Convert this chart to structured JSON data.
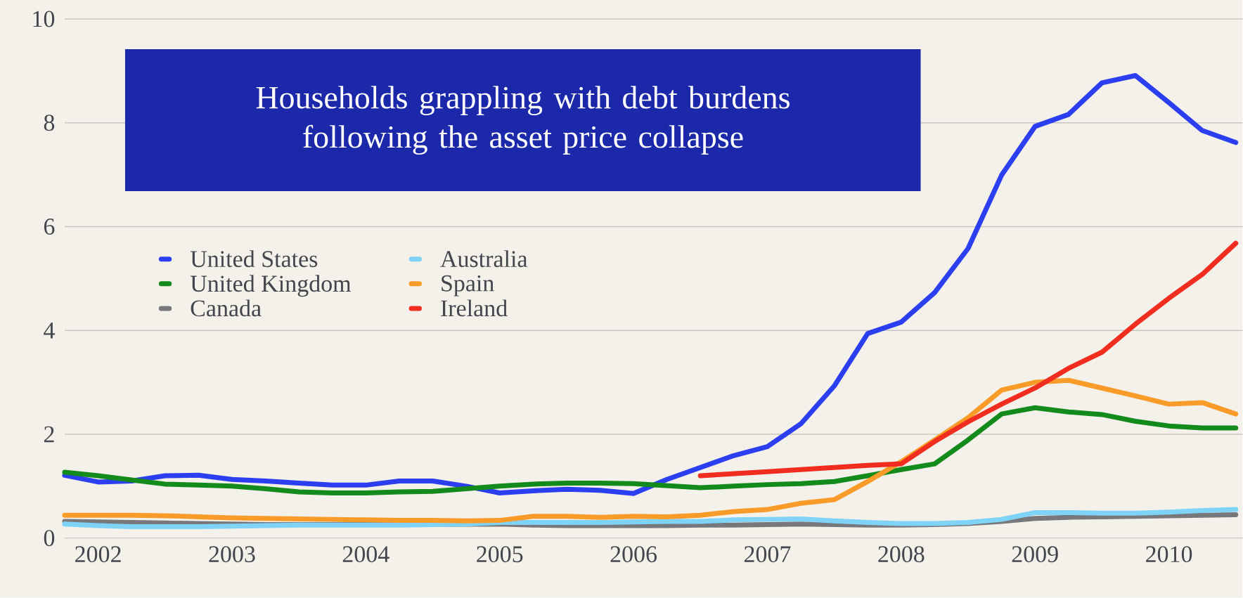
{
  "chart_data": {
    "type": "line",
    "title": "Households grappling with debt burdens following the asset price collapse",
    "x": [
      2001.75,
      2002,
      2002.25,
      2002.5,
      2002.75,
      2003,
      2003.25,
      2003.5,
      2003.75,
      2004,
      2004.25,
      2004.5,
      2004.75,
      2005,
      2005.25,
      2005.5,
      2005.75,
      2006,
      2006.25,
      2006.5,
      2006.75,
      2007,
      2007.25,
      2007.5,
      2007.75,
      2008,
      2008.25,
      2008.5,
      2008.75,
      2009,
      2009.25,
      2009.5,
      2009.75,
      2010,
      2010.25,
      2010.5
    ],
    "series": [
      {
        "name": "United States",
        "color": "#2b3ff0",
        "values": [
          1.21,
          1.08,
          1.1,
          1.2,
          1.21,
          1.13,
          1.1,
          1.06,
          1.02,
          1.02,
          1.1,
          1.1,
          1.0,
          0.87,
          0.91,
          0.94,
          0.92,
          0.86,
          1.13,
          1.36,
          1.59,
          1.76,
          2.2,
          2.93,
          3.94,
          4.16,
          4.73,
          5.58,
          6.99,
          7.93,
          8.16,
          8.77,
          8.91,
          8.39,
          7.85,
          7.62
        ]
      },
      {
        "name": "United Kingdom",
        "color": "#138a1c",
        "values": [
          1.27,
          1.2,
          1.12,
          1.04,
          1.02,
          1.0,
          0.95,
          0.89,
          0.87,
          0.87,
          0.89,
          0.9,
          0.95,
          1.0,
          1.04,
          1.06,
          1.06,
          1.05,
          1.01,
          0.97,
          1.0,
          1.03,
          1.05,
          1.09,
          1.2,
          1.32,
          1.43,
          1.89,
          2.39,
          2.51,
          2.43,
          2.38,
          2.25,
          2.16,
          2.12,
          2.12
        ]
      },
      {
        "name": "Canada",
        "color": "#77787c",
        "values": [
          0.32,
          0.31,
          0.3,
          0.29,
          0.28,
          0.27,
          0.26,
          0.26,
          null,
          null,
          null,
          null,
          null,
          0.27,
          0.25,
          0.24,
          0.24,
          0.24,
          0.24,
          0.25,
          0.25,
          0.26,
          0.27,
          0.26,
          0.25,
          0.25,
          0.26,
          0.28,
          0.32,
          0.38,
          0.4,
          0.41,
          0.42,
          0.43,
          0.44,
          0.45
        ]
      },
      {
        "name": "Australia",
        "color": "#7fd3f7",
        "values": [
          0.27,
          0.24,
          0.22,
          0.22,
          0.22,
          0.23,
          0.24,
          0.25,
          0.25,
          0.25,
          0.25,
          0.26,
          0.27,
          0.3,
          0.3,
          0.3,
          0.3,
          0.31,
          0.32,
          0.32,
          0.35,
          0.36,
          0.37,
          0.33,
          0.3,
          0.28,
          0.28,
          0.3,
          0.36,
          0.49,
          0.49,
          0.48,
          0.48,
          0.5,
          0.53,
          0.55
        ]
      },
      {
        "name": "Spain",
        "color": "#f99b28",
        "values": [
          0.44,
          0.44,
          0.44,
          0.43,
          0.41,
          0.39,
          0.38,
          0.37,
          0.36,
          0.35,
          0.34,
          0.34,
          0.33,
          0.34,
          0.42,
          0.42,
          0.4,
          0.42,
          0.41,
          0.44,
          0.51,
          0.55,
          0.67,
          0.74,
          1.09,
          1.47,
          1.89,
          2.32,
          2.85,
          3.0,
          3.04,
          2.89,
          2.74,
          2.58,
          2.61,
          2.39
        ]
      },
      {
        "name": "Ireland",
        "color": "#f02d1f",
        "x": [
          2006.5,
          2006.75,
          2007,
          2007.25,
          2007.5,
          2007.75,
          2008,
          2008.25,
          2008.5,
          2008.75,
          2009,
          2009.25,
          2009.5,
          2009.75,
          2010,
          2010.25,
          2010.5
        ],
        "values": [
          1.2,
          1.24,
          1.28,
          1.32,
          1.36,
          1.4,
          1.43,
          1.86,
          2.24,
          2.58,
          2.89,
          3.27,
          3.58,
          4.12,
          4.62,
          5.08,
          5.68
        ]
      }
    ],
    "xlim": [
      2001.75,
      2010.55
    ],
    "ylim": [
      0,
      10
    ],
    "xticks": [
      2002,
      2003,
      2004,
      2005,
      2006,
      2007,
      2008,
      2009,
      2010
    ],
    "yticks": [
      0,
      2,
      4,
      6,
      8,
      10
    ],
    "grid": "y",
    "legend": "left"
  }
}
